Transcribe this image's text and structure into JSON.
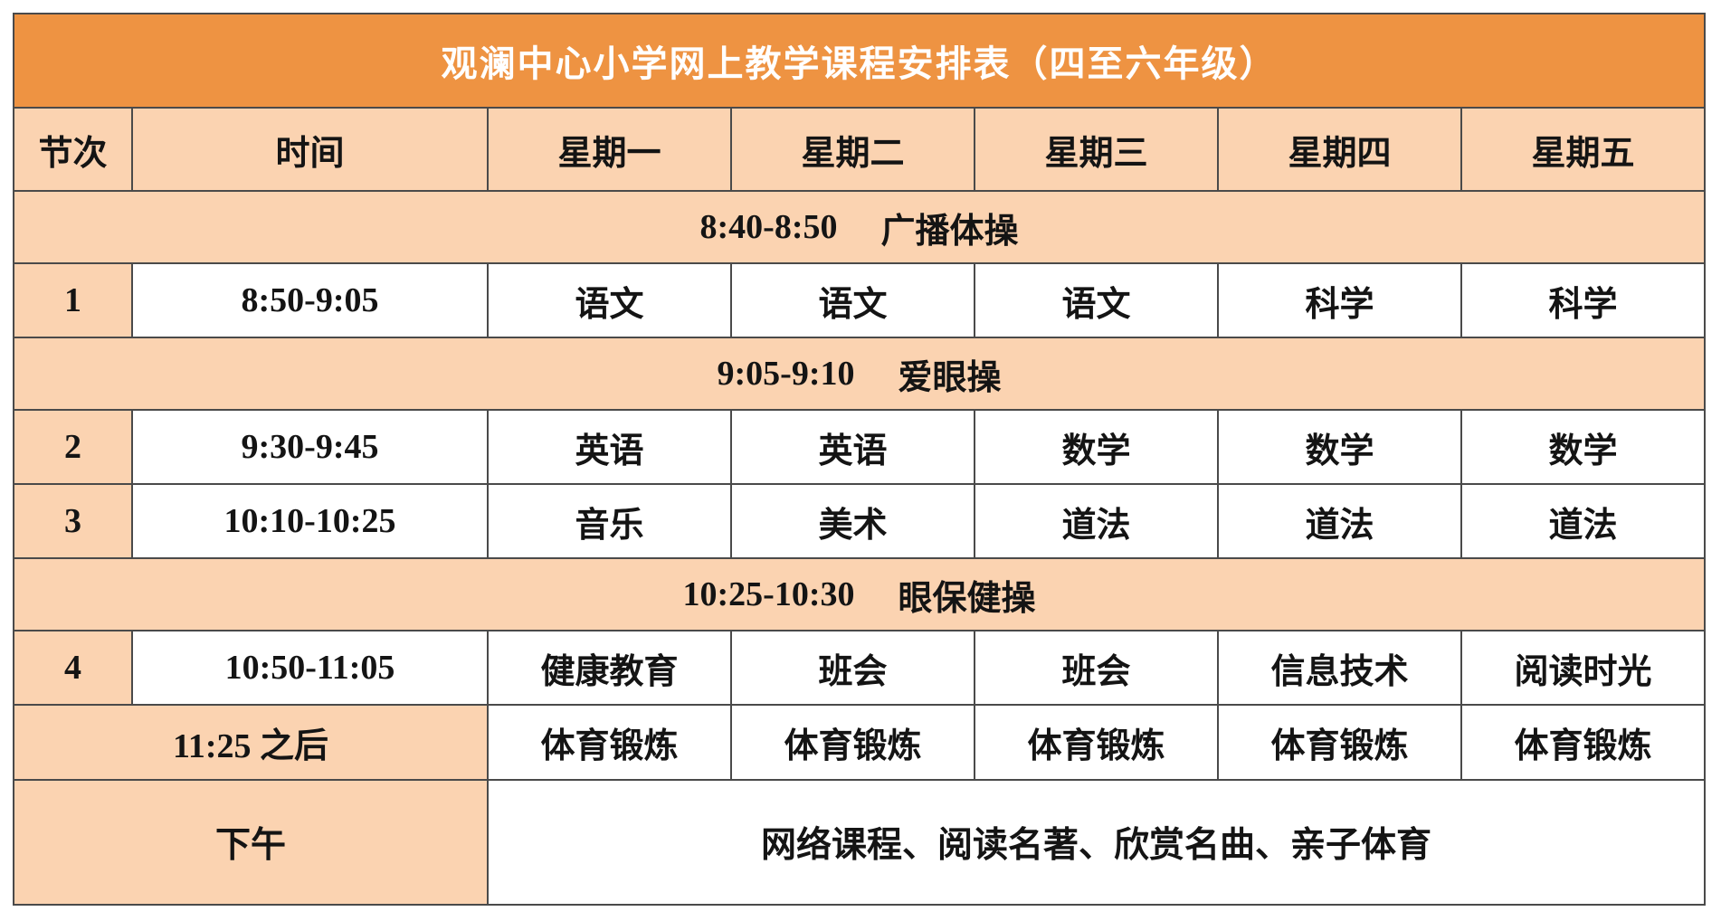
{
  "table": {
    "title": "观澜中心小学网上教学课程安排表（四至六年级）",
    "columns": [
      "节次",
      "时间",
      "星期一",
      "星期二",
      "星期三",
      "星期四",
      "星期五"
    ],
    "rows": [
      {
        "type": "activity",
        "time": "8:40-8:50",
        "label": "广播体操"
      },
      {
        "type": "lesson",
        "period": "1",
        "time": "8:50-9:05",
        "subjects": [
          "语文",
          "语文",
          "语文",
          "科学",
          "科学"
        ]
      },
      {
        "type": "activity",
        "time": "9:05-9:10",
        "label": "爱眼操"
      },
      {
        "type": "lesson",
        "period": "2",
        "time": "9:30-9:45",
        "subjects": [
          "英语",
          "英语",
          "数学",
          "数学",
          "数学"
        ]
      },
      {
        "type": "lesson",
        "period": "3",
        "time": "10:10-10:25",
        "subjects": [
          "音乐",
          "美术",
          "道法",
          "道法",
          "道法"
        ]
      },
      {
        "type": "activity",
        "time": "10:25-10:30",
        "label": "眼保健操"
      },
      {
        "type": "lesson",
        "period": "4",
        "time": "10:50-11:05",
        "subjects": [
          "健康教育",
          "班会",
          "班会",
          "信息技术",
          "阅读时光"
        ]
      },
      {
        "type": "merged",
        "label": "11:25 之后",
        "subjects": [
          "体育锻炼",
          "体育锻炼",
          "体育锻炼",
          "体育锻炼",
          "体育锻炼"
        ]
      },
      {
        "type": "afternoon",
        "label": "下午",
        "content": "网络课程、阅读名著、欣赏名曲、亲子体育"
      }
    ],
    "colors": {
      "title_bg": "#ee9342",
      "band_bg": "#fbd3b1",
      "cell_bg": "#ffffff",
      "border": "#4a4a4a",
      "title_text": "#ffffff",
      "text": "#141414"
    }
  }
}
